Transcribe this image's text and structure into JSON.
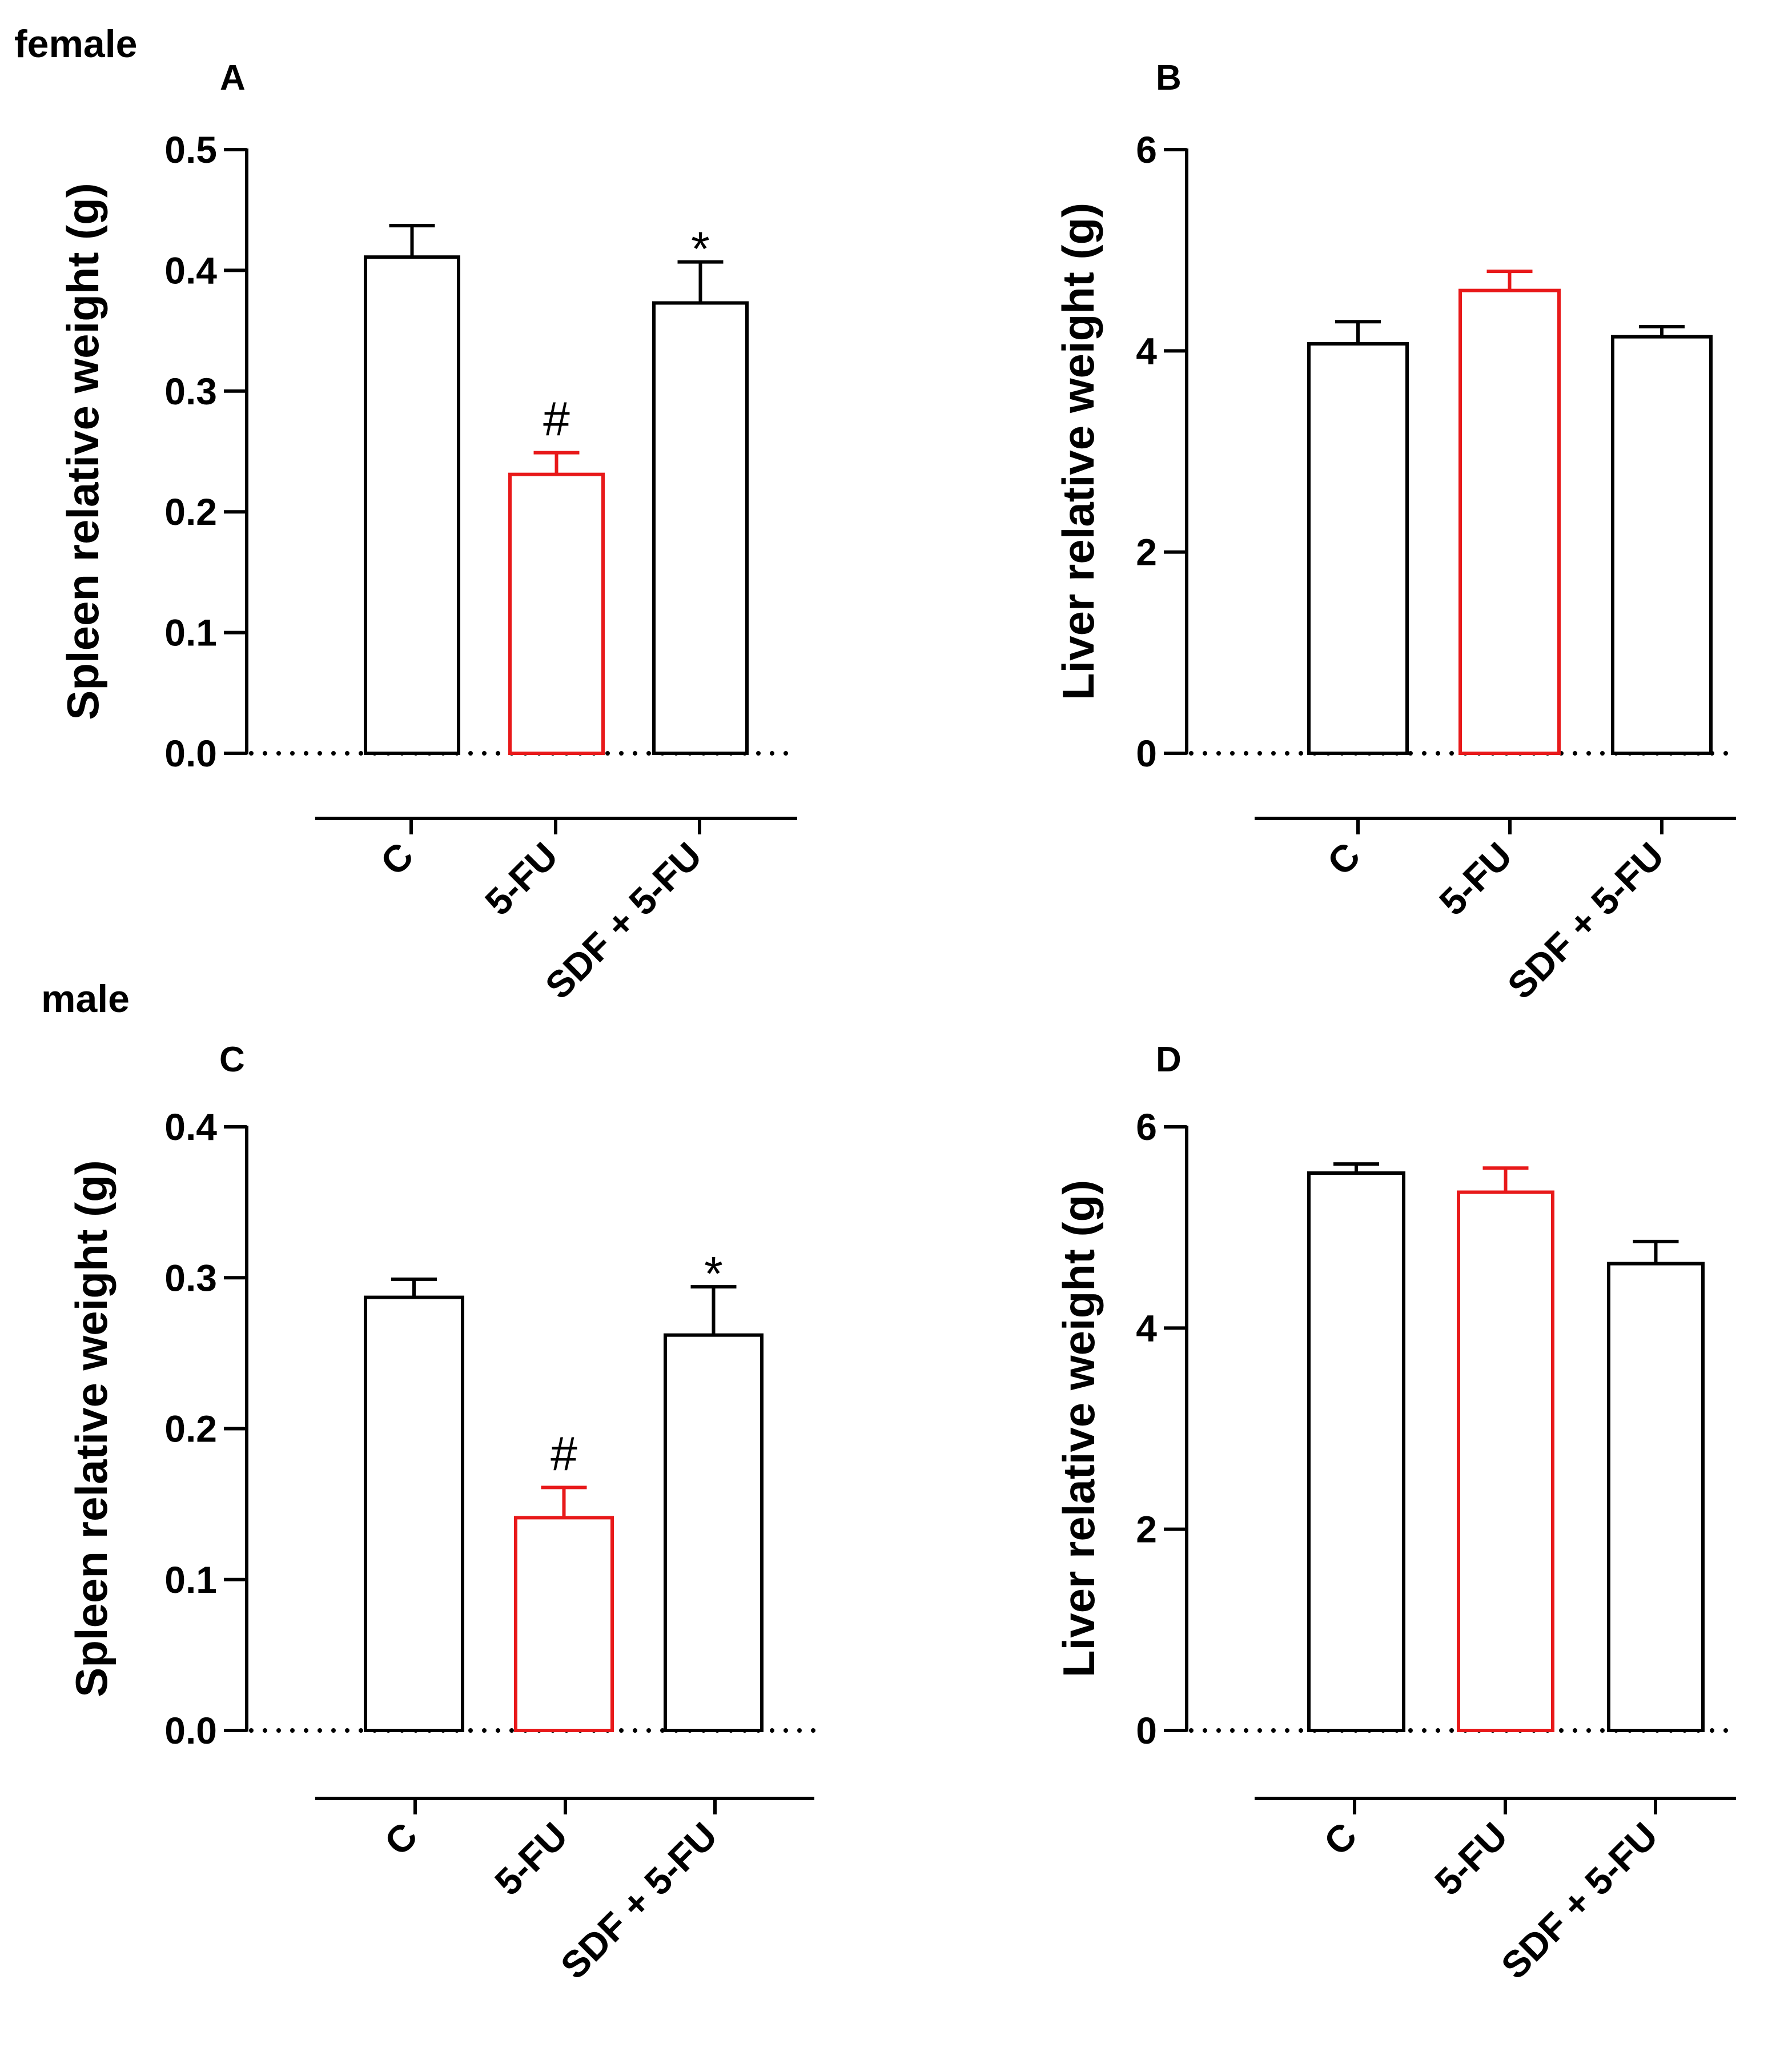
{
  "figure": {
    "groups": [
      {
        "label": "female"
      },
      {
        "label": "male"
      }
    ]
  },
  "chart_data": [
    {
      "panel": "A",
      "group": "female",
      "type": "bar",
      "ylabel": "Spleen relative weight (g)",
      "ylim": [
        0,
        0.5
      ],
      "yticks": [
        0.0,
        0.1,
        0.2,
        0.3,
        0.4,
        0.5
      ],
      "ytick_labels": [
        "0.0",
        "0.1",
        "0.2",
        "0.3",
        "0.4",
        "0.5"
      ],
      "categories": [
        "C",
        "5-FU",
        "SDF + 5-FU"
      ],
      "values": [
        0.411,
        0.231,
        0.373
      ],
      "errors": [
        0.026,
        0.018,
        0.034
      ],
      "bar_colors": [
        "#000000",
        "#e8191a",
        "#000000"
      ],
      "annotations": [
        "",
        "#",
        "*"
      ]
    },
    {
      "panel": "B",
      "group": "female",
      "type": "bar",
      "ylabel": "Liver relative weight (g)",
      "ylim": [
        0,
        6
      ],
      "yticks": [
        0,
        2,
        4,
        6
      ],
      "ytick_labels": [
        "0",
        "2",
        "4",
        "6"
      ],
      "categories": [
        "C",
        "5-FU",
        "SDF + 5-FU"
      ],
      "values": [
        4.07,
        4.6,
        4.14
      ],
      "errors": [
        0.22,
        0.19,
        0.1
      ],
      "bar_colors": [
        "#000000",
        "#e8191a",
        "#000000"
      ],
      "annotations": [
        "",
        "",
        ""
      ]
    },
    {
      "panel": "C",
      "group": "male",
      "type": "bar",
      "ylabel": "Spleen relative weight (g)",
      "ylim": [
        0,
        0.4
      ],
      "yticks": [
        0.0,
        0.1,
        0.2,
        0.3,
        0.4
      ],
      "ytick_labels": [
        "0.0",
        "0.1",
        "0.2",
        "0.3",
        "0.4"
      ],
      "categories": [
        "C",
        "5-FU",
        "SDF + 5-FU"
      ],
      "values": [
        0.287,
        0.141,
        0.262
      ],
      "errors": [
        0.012,
        0.02,
        0.032
      ],
      "bar_colors": [
        "#000000",
        "#e8191a",
        "#000000"
      ],
      "annotations": [
        "",
        "#",
        "*"
      ]
    },
    {
      "panel": "D",
      "group": "male",
      "type": "bar",
      "ylabel": "Liver relative weight (g)",
      "ylim": [
        0,
        6
      ],
      "yticks": [
        0,
        2,
        4,
        6
      ],
      "ytick_labels": [
        "0",
        "2",
        "4",
        "6"
      ],
      "categories": [
        "C",
        "5-FU",
        "SDF + 5-FU"
      ],
      "values": [
        5.54,
        5.35,
        4.64
      ],
      "errors": [
        0.09,
        0.24,
        0.22
      ],
      "bar_colors": [
        "#000000",
        "#e8191a",
        "#000000"
      ],
      "annotations": [
        "",
        "",
        ""
      ]
    }
  ]
}
